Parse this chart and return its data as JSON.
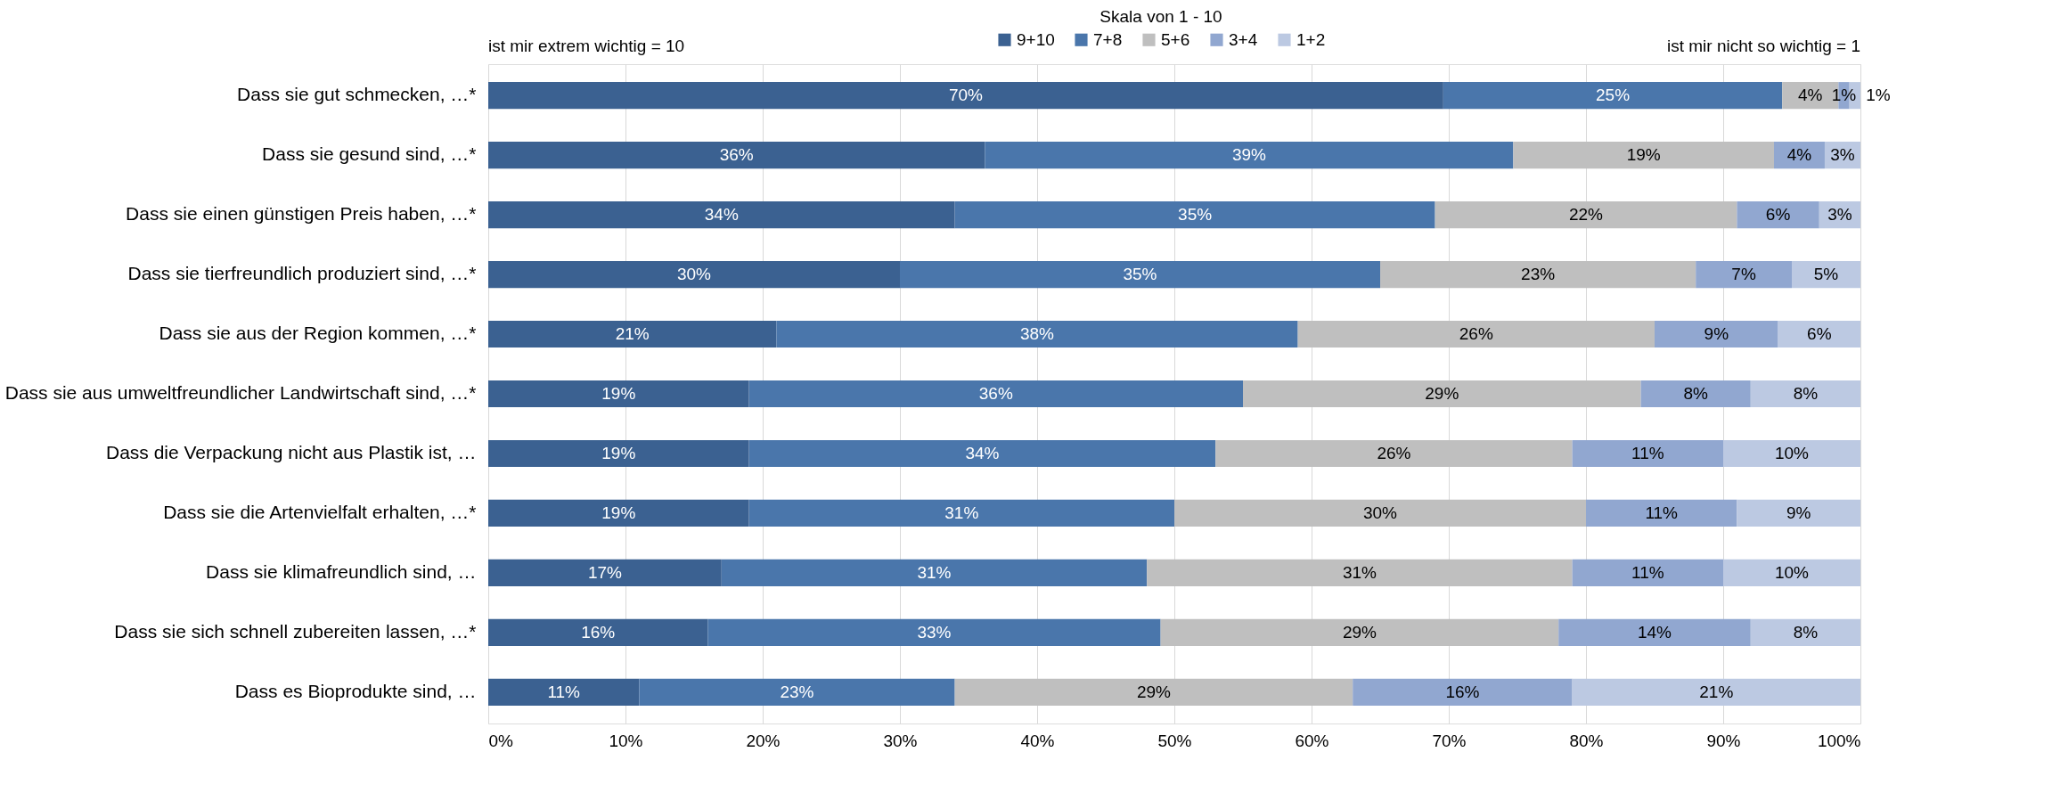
{
  "chart_data": {
    "type": "bar",
    "orientation": "horizontal",
    "stacked": true,
    "legend": "top",
    "legend_title": "Skala von 1 - 10",
    "grid": "x",
    "categories": [
      "Dass sie gut schmecken, …*",
      "Dass sie gesund sind, …*",
      "Dass sie einen günstigen Preis haben, …*",
      "Dass sie tierfreundlich produziert sind, …*",
      "Dass sie aus der Region kommen, …*",
      "Dass sie aus umweltfreundlicher Landwirtschaft sind, …*",
      "Dass die Verpackung nicht aus Plastik ist, …",
      "Dass sie die Artenvielfalt erhalten, …*",
      "Dass sie klimafreundlich sind, …",
      "Dass sie sich schnell zubereiten lassen, …*",
      "Dass es Bioprodukte sind, …"
    ],
    "series": [
      {
        "name": "9+10",
        "color": "#3b6191",
        "values": [
          69.6,
          36.2,
          34,
          30,
          21,
          19,
          19,
          19,
          17,
          16,
          11
        ],
        "value_labels": [
          "70%",
          "36%",
          "34%",
          "30%",
          "21%",
          "19%",
          "19%",
          "19%",
          "17%",
          "16%",
          "11%"
        ]
      },
      {
        "name": "7+8",
        "color": "#4a76ab",
        "values": [
          24.7,
          38.5,
          35,
          35,
          38,
          36,
          34,
          31,
          31,
          33,
          23
        ],
        "value_labels": [
          "25%",
          "39%",
          "35%",
          "35%",
          "38%",
          "36%",
          "34%",
          "31%",
          "31%",
          "33%",
          "23%"
        ]
      },
      {
        "name": "5+6",
        "color": "#bfbfbf",
        "values": [
          4.1,
          19,
          22,
          23,
          26,
          29,
          26,
          30,
          31,
          29,
          29
        ],
        "value_labels": [
          "4%",
          "19%",
          "22%",
          "23%",
          "26%",
          "29%",
          "26%",
          "30%",
          "31%",
          "29%",
          "29%"
        ]
      },
      {
        "name": "3+4",
        "color": "#91a7d0",
        "values": [
          0.8,
          3.7,
          6,
          7,
          9,
          8,
          11,
          11,
          11,
          14,
          16
        ],
        "value_labels": [
          "1%",
          "4%",
          "6%",
          "7%",
          "9%",
          "8%",
          "11%",
          "11%",
          "11%",
          "14%",
          "16%"
        ]
      },
      {
        "name": "1+2",
        "color": "#bcc9e2",
        "values": [
          0.8,
          2.6,
          3,
          5,
          6,
          8,
          10,
          9,
          10,
          8,
          21
        ],
        "value_labels": [
          "1%",
          "3%",
          "3%",
          "5%",
          "6%",
          "8%",
          "10%",
          "9%",
          "10%",
          "8%",
          "21%"
        ]
      }
    ],
    "xlim": [
      0,
      100
    ],
    "xticks": [
      {
        "value": 0,
        "label": "0%"
      },
      {
        "value": 10,
        "label": "10%"
      },
      {
        "value": 20,
        "label": "20%"
      },
      {
        "value": 30,
        "label": "30%"
      },
      {
        "value": 40,
        "label": "40%"
      },
      {
        "value": 50,
        "label": "50%"
      },
      {
        "value": 60,
        "label": "60%"
      },
      {
        "value": 70,
        "label": "70%"
      },
      {
        "value": 80,
        "label": "80%"
      },
      {
        "value": 90,
        "label": "90%"
      },
      {
        "value": 100,
        "label": "100%"
      }
    ],
    "annotations": [
      "ist mir extrem wichtig = 10",
      "ist mir nicht so wichtig = 1"
    ]
  }
}
